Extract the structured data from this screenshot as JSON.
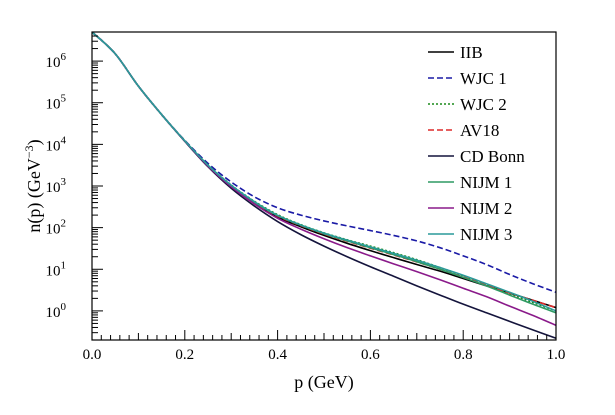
{
  "chart_data": {
    "type": "line",
    "title": "",
    "xlabel": "p (GeV)",
    "ylabel_main": "n(p) (GeV",
    "ylabel_exp": "−3",
    "ylabel_close": ")",
    "xlim": [
      0.0,
      1.0
    ],
    "ylim": [
      0.2,
      5000000
    ],
    "yscale": "log",
    "grid": false,
    "legend_position": "top-right",
    "x_ticks": [
      "0.0",
      "0.2",
      "0.4",
      "0.6",
      "0.8",
      "1.0"
    ],
    "y_ticks": [
      {
        "base": "10",
        "exp": "0"
      },
      {
        "base": "10",
        "exp": "1"
      },
      {
        "base": "10",
        "exp": "2"
      },
      {
        "base": "10",
        "exp": "3"
      },
      {
        "base": "10",
        "exp": "4"
      },
      {
        "base": "10",
        "exp": "5"
      },
      {
        "base": "10",
        "exp": "6"
      }
    ],
    "x": [
      0.0,
      0.05,
      0.1,
      0.15,
      0.2,
      0.25,
      0.3,
      0.35,
      0.4,
      0.45,
      0.5,
      0.55,
      0.6,
      0.65,
      0.7,
      0.75,
      0.8,
      0.85,
      0.9,
      0.95,
      1.0
    ],
    "series": [
      {
        "name": "IIB",
        "color": "#000000",
        "dash": "solid",
        "values": [
          5000000,
          1500000,
          250000,
          52000,
          12000,
          3000,
          950,
          380,
          180,
          105,
          65,
          42,
          28,
          19,
          13,
          9,
          6,
          4,
          2.7,
          1.8,
          1.2
        ]
      },
      {
        "name": "WJC 1",
        "color": "#1a1aa6",
        "dash": "dashed",
        "values": [
          5000000,
          1500000,
          250000,
          52000,
          12500,
          3500,
          1250,
          550,
          300,
          200,
          145,
          110,
          85,
          65,
          48,
          33,
          21,
          13,
          7.5,
          4.5,
          2.8
        ]
      },
      {
        "name": "WJC 2",
        "color": "#1a8a1a",
        "dash": "dotted",
        "values": [
          5000000,
          1500000,
          250000,
          52000,
          12200,
          3200,
          1060,
          430,
          205,
          118,
          75,
          51,
          36,
          25,
          17,
          11,
          7,
          4.2,
          2.6,
          1.6,
          1.0
        ]
      },
      {
        "name": "AV18",
        "color": "#dd2a2a",
        "dash": "dashed",
        "values": [
          5000000,
          1500000,
          250000,
          52000,
          12100,
          3100,
          1000,
          400,
          190,
          112,
          70,
          47,
          32,
          22,
          15,
          10,
          6.5,
          4.2,
          2.7,
          1.8,
          1.2
        ]
      },
      {
        "name": "CD Bonn",
        "color": "#14143c",
        "dash": "solid",
        "values": [
          5000000,
          1500000,
          250000,
          52000,
          11800,
          2900,
          880,
          330,
          140,
          68,
          36,
          20,
          11.5,
          6.8,
          4.0,
          2.4,
          1.45,
          0.9,
          0.56,
          0.35,
          0.22
        ]
      },
      {
        "name": "NIJM 1",
        "color": "#2f9a64",
        "dash": "solid",
        "values": [
          5000000,
          1500000,
          250000,
          52000,
          12100,
          3100,
          1020,
          410,
          195,
          114,
          72,
          48,
          33,
          22.5,
          15.2,
          10,
          6.4,
          4.0,
          2.4,
          1.45,
          0.9
        ]
      },
      {
        "name": "NIJM 2",
        "color": "#8a1a8a",
        "dash": "solid",
        "values": [
          5000000,
          1500000,
          250000,
          52000,
          12000,
          3000,
          960,
          370,
          168,
          92,
          54,
          33,
          21,
          13.5,
          8.8,
          5.6,
          3.5,
          2.2,
          1.3,
          0.78,
          0.45
        ]
      },
      {
        "name": "NIJM 3",
        "color": "#2a9a9a",
        "dash": "solid",
        "values": [
          5000000,
          1500000,
          250000,
          52000,
          12150,
          3150,
          1040,
          420,
          198,
          116,
          74,
          50,
          34.5,
          24,
          16.5,
          11,
          7.2,
          4.5,
          2.8,
          1.7,
          1.0
        ]
      }
    ]
  }
}
